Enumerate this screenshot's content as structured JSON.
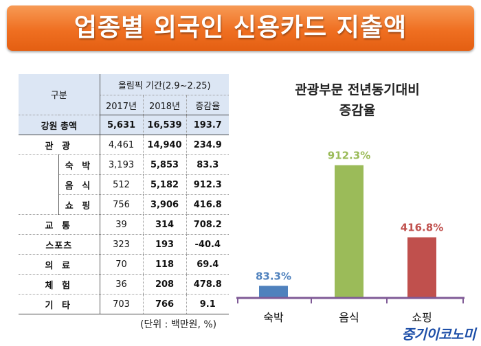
{
  "banner": {
    "title": "업종별 외국인 신용카드 지출액"
  },
  "table": {
    "header": {
      "category": "구분",
      "period": "올림픽 기간(2.9~2.25)",
      "col_2017": "2017년",
      "col_2018": "2018년",
      "col_rate": "증감율"
    },
    "total": {
      "label": "강원 총액",
      "v2017": "5,631",
      "v2018": "16,539",
      "rate": "193.7"
    },
    "rows": [
      {
        "label": "관 광",
        "v2017": "4,461",
        "v2018": "14,940",
        "rate": "234.9"
      },
      {
        "label": "숙 박",
        "v2017": "3,193",
        "v2018": "5,853",
        "rate": "83.3"
      },
      {
        "label": "음 식",
        "v2017": "512",
        "v2018": "5,182",
        "rate": "912.3"
      },
      {
        "label": "쇼 핑",
        "v2017": "756",
        "v2018": "3,906",
        "rate": "416.8"
      },
      {
        "label": "교 통",
        "v2017": "39",
        "v2018": "314",
        "rate": "708.2"
      },
      {
        "label": "스포츠",
        "v2017": "323",
        "v2018": "193",
        "rate": "-40.4"
      },
      {
        "label": "의 료",
        "v2017": "70",
        "v2018": "118",
        "rate": "69.4"
      },
      {
        "label": "체 험",
        "v2017": "36",
        "v2018": "208",
        "rate": "478.8"
      },
      {
        "label": "기 타",
        "v2017": "703",
        "v2018": "766",
        "rate": "9.1"
      }
    ],
    "unit": "(단위 : 백만원, %)"
  },
  "chart_data": {
    "type": "bar",
    "title_line1": "관광부문 전년동기대비",
    "title_line2": "증감율",
    "categories": [
      "숙박",
      "음식",
      "쇼핑"
    ],
    "values": [
      83.3,
      912.3,
      416.8
    ],
    "data_labels": [
      "83.3%",
      "912.3%",
      "416.8%"
    ],
    "colors": [
      "#4f81bd",
      "#9bbb59",
      "#c0504d"
    ],
    "ylim": [
      0,
      1000
    ],
    "grid": false,
    "legend": "none"
  },
  "logo": {
    "text": "중기이코노미"
  }
}
